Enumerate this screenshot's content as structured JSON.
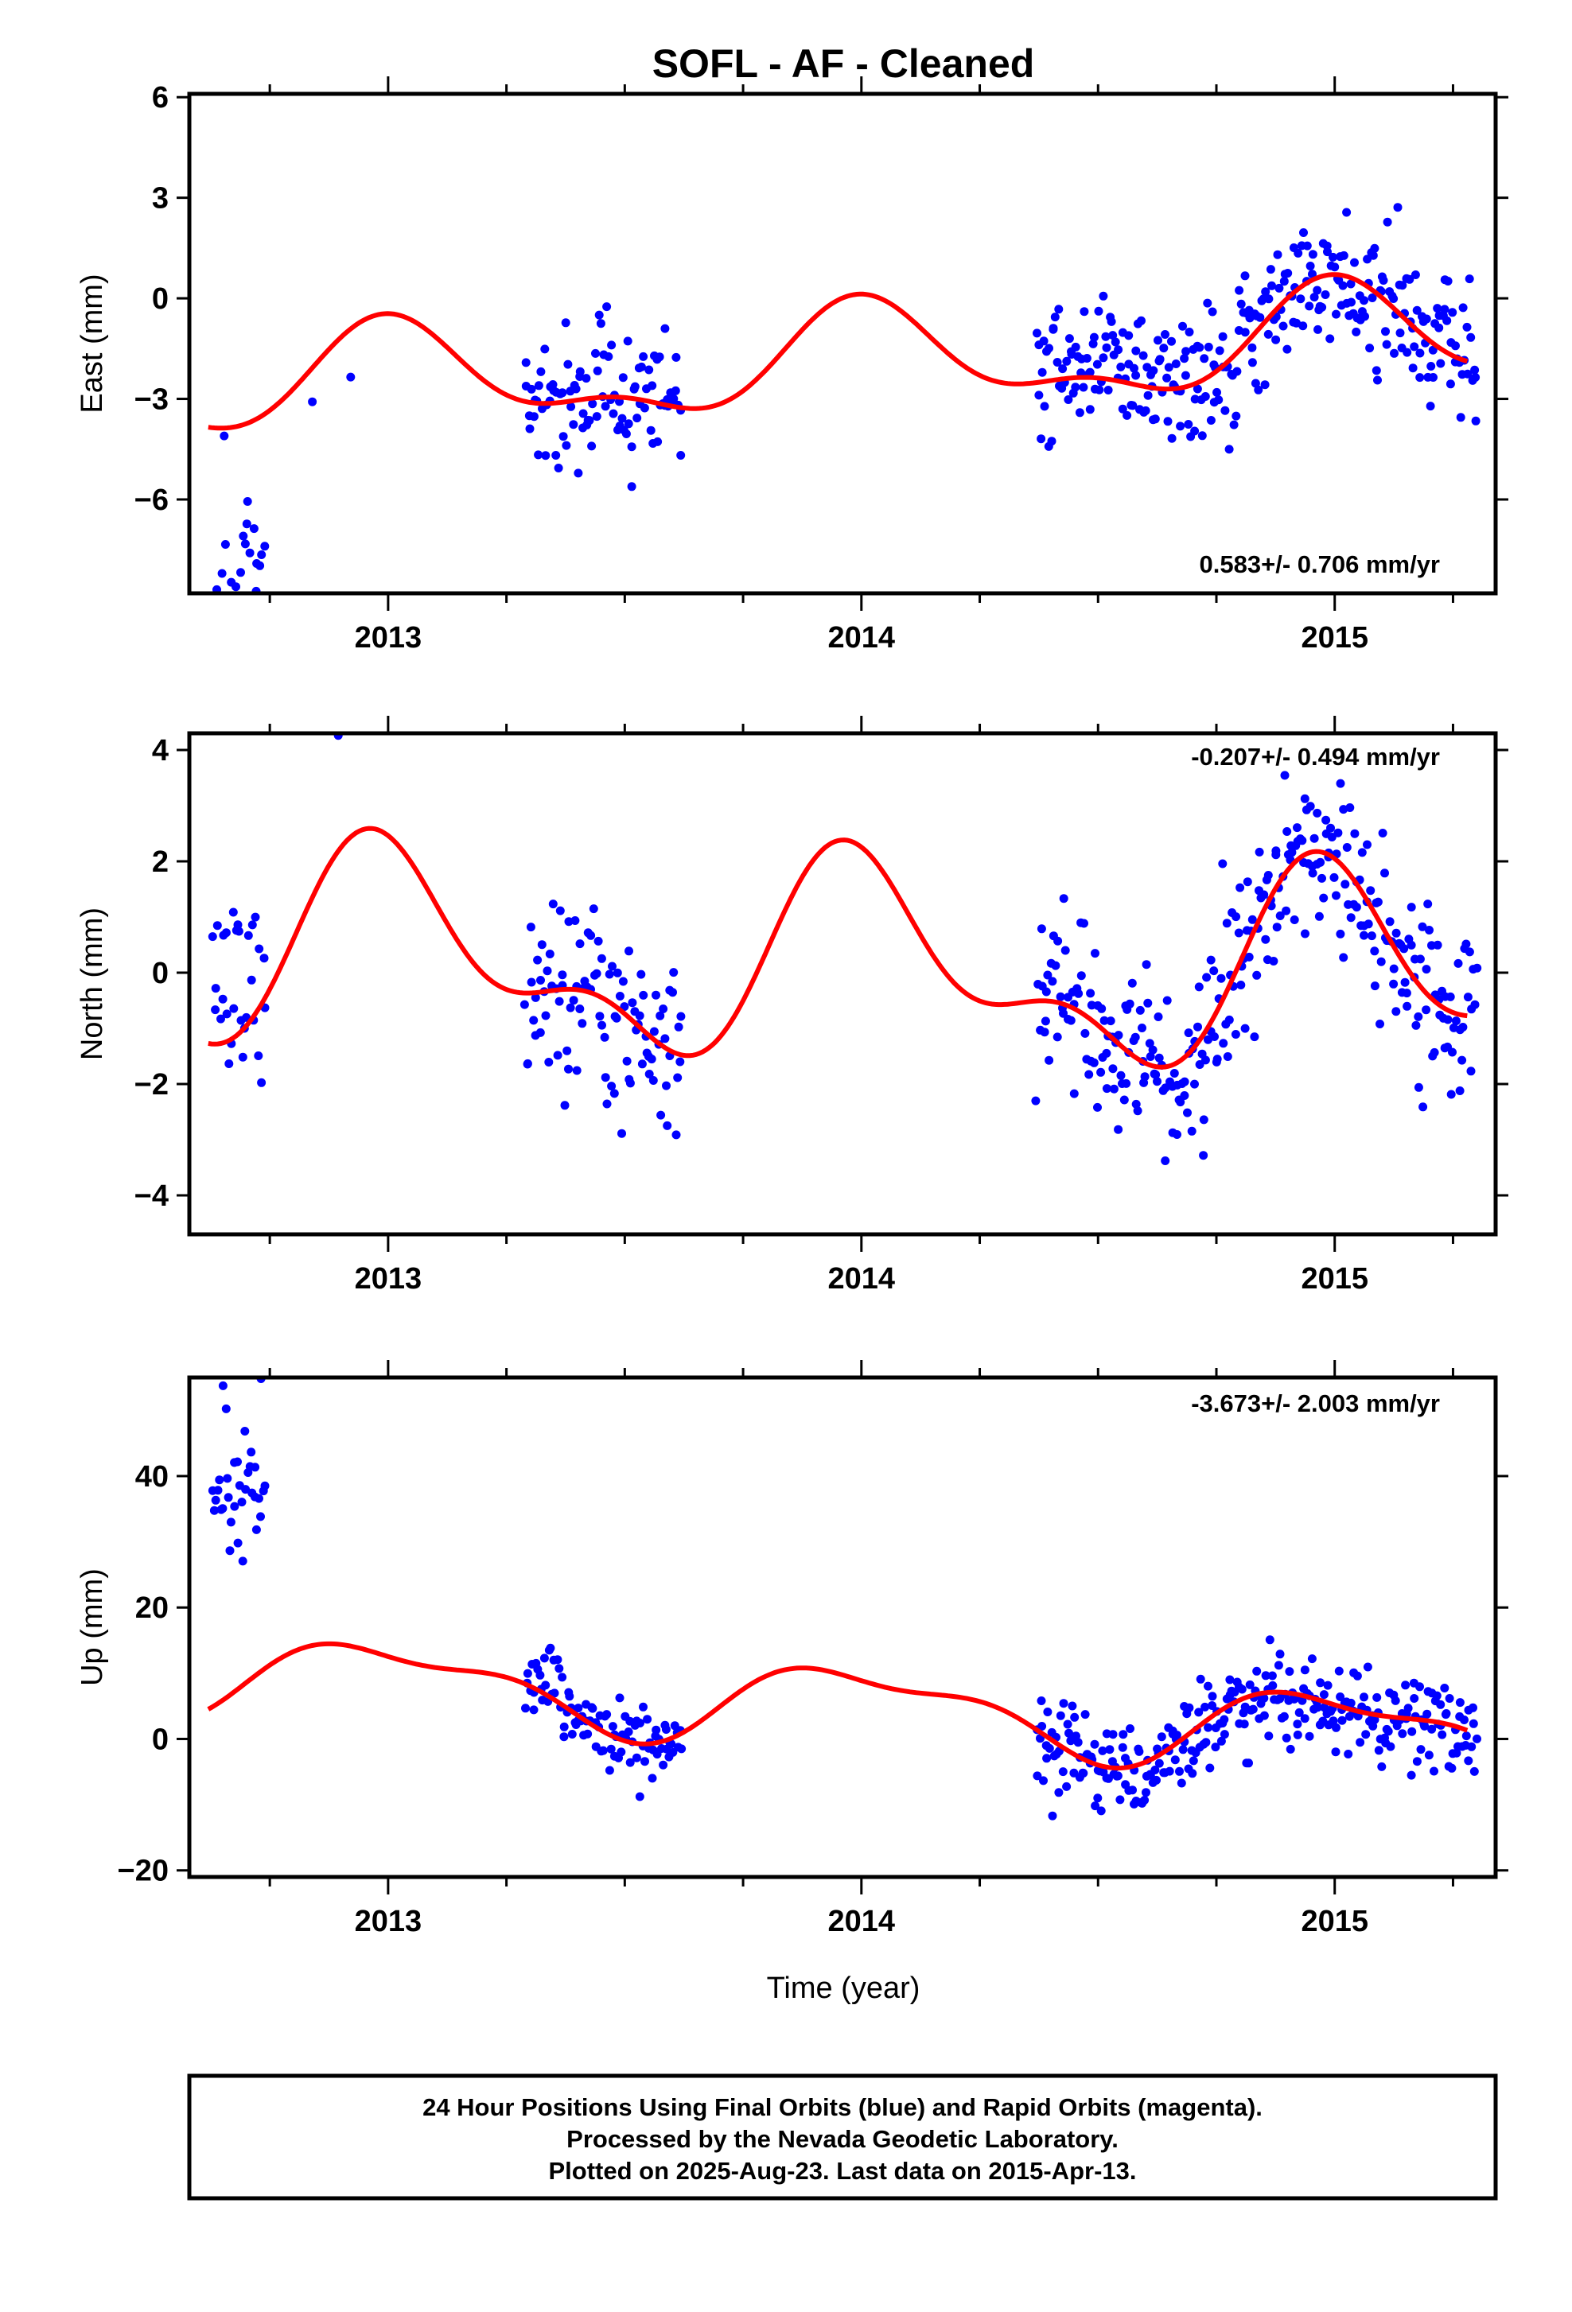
{
  "title": "SOFL  - AF - Cleaned",
  "xlabel": "Time (year)",
  "footer": {
    "line1": "24 Hour Positions Using Final Orbits (blue) and Rapid Orbits (magenta).",
    "line2": "Processed by the Nevada Geodetic Laboratory.",
    "line3": "Plotted on 2025-Aug-23. Last data on 2015-Apr-13."
  },
  "colors": {
    "points": "#0000ff",
    "model": "#ff0000",
    "axes": "#000000"
  },
  "chart_data": [
    {
      "type": "scatter",
      "ylabel": "East (mm)",
      "rate_text": "0.583+/- 0.706 mm/yr",
      "xlim": [
        2012.58,
        2015.34
      ],
      "ylim": [
        -8.8,
        6.1
      ],
      "xticks": [
        2013,
        2014,
        2015
      ],
      "yticks": [
        -6,
        -3,
        0,
        3,
        6
      ],
      "ytick_labels": [
        "−6",
        "−3",
        "0",
        "3",
        "6"
      ],
      "model": {
        "offset": -1.9,
        "trend": 0.583,
        "amp": 1.4,
        "seed": 11
      },
      "segments": [
        {
          "start": 2012.63,
          "end": 2012.74,
          "n": 34,
          "bias": -5.0,
          "noise": 1.7
        },
        {
          "start": 2012.84,
          "end": 2012.92,
          "n": 2,
          "bias": -1.2,
          "noise": 0.4
        },
        {
          "start": 2013.29,
          "end": 2013.62,
          "n": 100,
          "bias": 0.0,
          "noise": 1.0
        },
        {
          "start": 2014.37,
          "end": 2015.3,
          "n": 300,
          "bias": 0.1,
          "noise": 1.1
        }
      ]
    },
    {
      "type": "scatter",
      "ylabel": "North (mm)",
      "rate_text": "-0.207+/- 0.494 mm/yr",
      "xlim": [
        2012.58,
        2015.34
      ],
      "ylim": [
        -4.7,
        4.3
      ],
      "xticks": [
        2013,
        2014,
        2015
      ],
      "yticks": [
        -4,
        -2,
        0,
        2,
        4
      ],
      "ytick_labels": [
        "−4",
        "−2",
        "0",
        "2",
        "4"
      ],
      "model": {
        "offset": 0.1,
        "trend": -0.207,
        "amp": 1.55,
        "seed": 23
      },
      "segments": [
        {
          "start": 2012.63,
          "end": 2012.74,
          "n": 30,
          "bias": 0.6,
          "noise": 0.9
        },
        {
          "start": 2012.89,
          "end": 2012.9,
          "n": 1,
          "bias": 2.2,
          "noise": 0.1
        },
        {
          "start": 2013.29,
          "end": 2013.62,
          "n": 100,
          "bias": 0.0,
          "noise": 0.9
        },
        {
          "start": 2014.37,
          "end": 2015.3,
          "n": 300,
          "bias": 0.0,
          "noise": 0.8
        }
      ]
    },
    {
      "type": "scatter",
      "ylabel": "Up (mm)",
      "rate_text": "-3.673+/- 2.003 mm/yr",
      "xlim": [
        2012.58,
        2015.34
      ],
      "ylim": [
        -21,
        55
      ],
      "xticks": [
        2013,
        2014,
        2015
      ],
      "yticks": [
        -20,
        0,
        20,
        40
      ],
      "ytick_labels": [
        "−20",
        "0",
        "20",
        "40"
      ],
      "model": {
        "offset": 5.0,
        "trend": -3.673,
        "amp": 5.5,
        "seed": 37
      },
      "segments": [
        {
          "start": 2012.63,
          "end": 2012.74,
          "n": 34,
          "bias": 30.0,
          "noise": 5.0
        },
        {
          "start": 2012.84,
          "end": 2012.91,
          "n": 2,
          "bias": 40.0,
          "noise": 5.0
        },
        {
          "start": 2013.29,
          "end": 2013.62,
          "n": 100,
          "bias": 0.0,
          "noise": 3.0
        },
        {
          "start": 2014.37,
          "end": 2015.3,
          "n": 300,
          "bias": -1.0,
          "noise": 3.6
        }
      ]
    }
  ]
}
